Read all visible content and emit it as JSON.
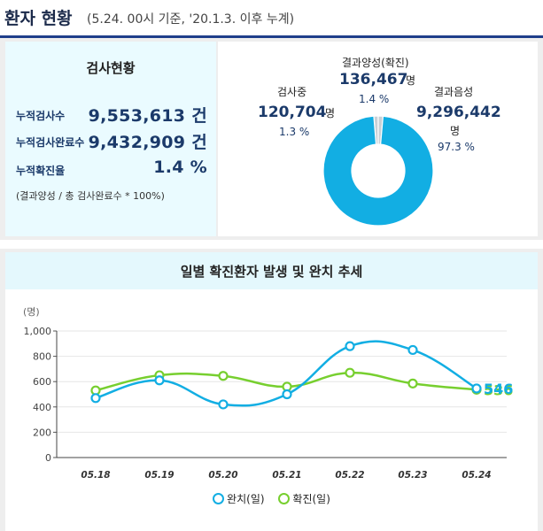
{
  "header": {
    "title": "환자 현황",
    "subtitle": "(5.24. 00시 기준, '20.1.3. 이후 누계)"
  },
  "summary": {
    "title": "검사현황",
    "rows": [
      {
        "label": "누적검사수",
        "value": "9,553,613 건"
      },
      {
        "label": "누적검사완료수",
        "value": "9,432,909 건"
      },
      {
        "label": "누적확진율",
        "value": "1.4 %"
      }
    ],
    "note": "(결과양성 / 총 검사완료수 * 100%)"
  },
  "donut": {
    "colors": {
      "negative": "#12aee3",
      "pending": "#c8d0d6",
      "positive": "#c8d0d6"
    },
    "segments": [
      {
        "label": "검사중",
        "value": "120,704",
        "unit": "명",
        "pct": "1.3 %",
        "pct_num": 1.3
      },
      {
        "label": "결과양성(확진)",
        "value": "136,467",
        "unit": "명",
        "pct": "1.4 %",
        "pct_num": 1.4
      },
      {
        "label": "결과음성",
        "value": "9,296,442",
        "unit": "명",
        "pct": "97.3 %",
        "pct_num": 97.3
      }
    ]
  },
  "chart_title": "일별 확진환자 발생 및 완치 추세",
  "chart_data": {
    "type": "line",
    "ylabel": "(명)",
    "categories": [
      "05.18",
      "05.19",
      "05.20",
      "05.21",
      "05.22",
      "05.23",
      "05.24"
    ],
    "yticks": [
      "0",
      "200",
      "400",
      "600",
      "800",
      "1,000"
    ],
    "ylim": [
      0,
      1000
    ],
    "series": [
      {
        "name": "완치(일)",
        "color": "#12aee3",
        "values": [
          470,
          610,
          420,
          500,
          880,
          850,
          546
        ],
        "end_label": "546"
      },
      {
        "name": "확진(일)",
        "color": "#77cf2f",
        "values": [
          530,
          650,
          645,
          560,
          670,
          585,
          536
        ],
        "end_label": "536"
      }
    ],
    "legend": [
      "완치(일)",
      "확진(일)"
    ],
    "grid": true
  }
}
